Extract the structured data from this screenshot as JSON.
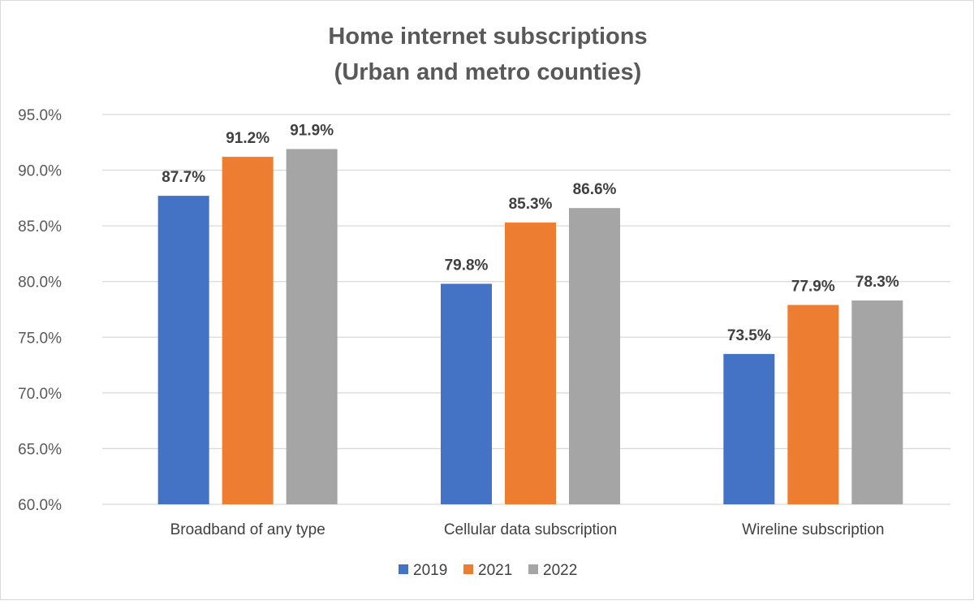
{
  "chart_data": {
    "type": "bar",
    "title_lines": [
      "Home internet subscriptions",
      "(Urban and metro counties)"
    ],
    "categories": [
      "Broadband of any type",
      "Cellular data subscription",
      "Wireline subscription"
    ],
    "series": [
      {
        "name": "2019",
        "values": [
          87.7,
          79.8,
          73.5
        ],
        "color": "#4472C4"
      },
      {
        "name": "2021",
        "values": [
          91.2,
          85.3,
          77.9
        ],
        "color": "#ED7D31"
      },
      {
        "name": "2022",
        "values": [
          91.9,
          86.6,
          78.3
        ],
        "color": "#A5A5A5"
      }
    ],
    "ylim": [
      60,
      95
    ],
    "yticks": [
      60,
      65,
      70,
      75,
      80,
      85,
      90,
      95
    ],
    "ytick_labels": [
      "60.0%",
      "65.0%",
      "70.0%",
      "75.0%",
      "80.0%",
      "85.0%",
      "90.0%",
      "95.0%"
    ],
    "data_labels": [
      [
        "87.7%",
        "79.8%",
        "73.5%"
      ],
      [
        "91.2%",
        "85.3%",
        "77.9%"
      ],
      [
        "91.9%",
        "86.6%",
        "78.3%"
      ]
    ],
    "grid": true,
    "legend_position": "bottom"
  }
}
